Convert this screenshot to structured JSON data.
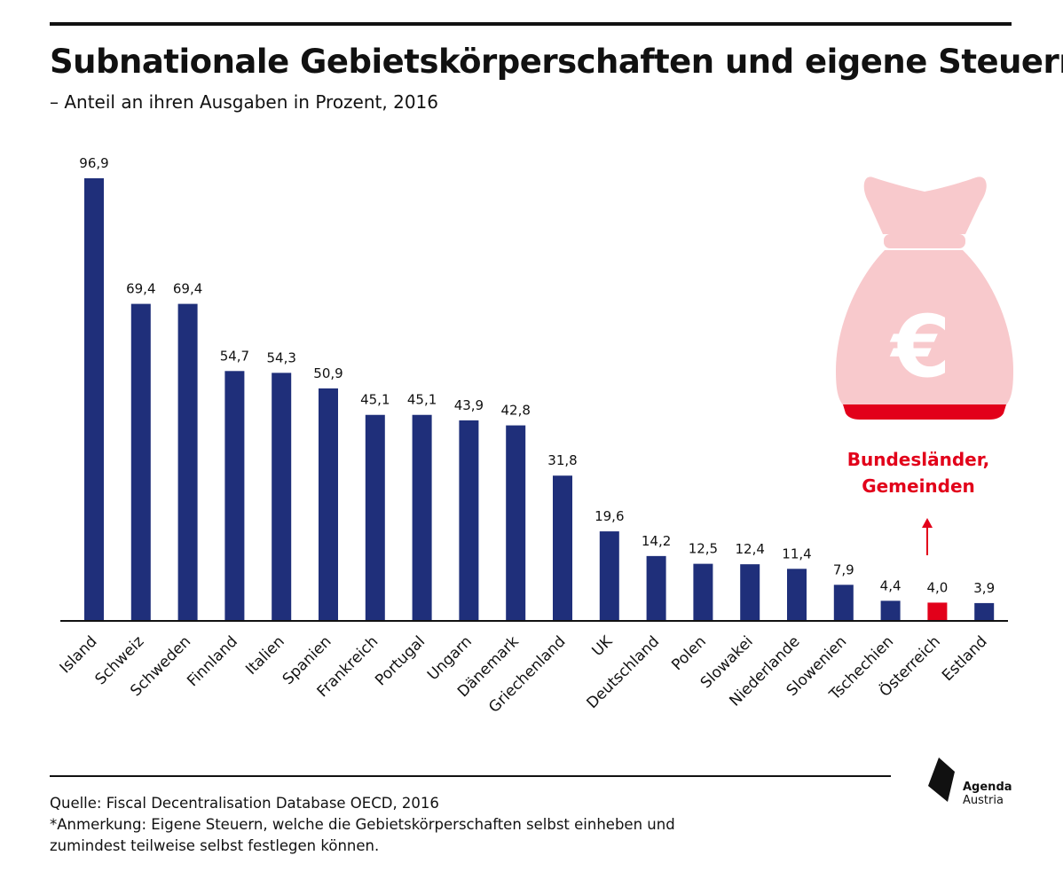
{
  "header": {
    "title": "Subnationale Gebietskörperschaften und eigene Steuern*",
    "subtitle": "– Anteil an ihren Ausgaben in Prozent, 2016"
  },
  "chart_data": {
    "type": "bar",
    "title": "Subnationale Gebietskörperschaften und eigene Steuern*",
    "subtitle": "– Anteil an ihren Ausgaben in Prozent, 2016",
    "xlabel": "",
    "ylabel": "",
    "ylim": [
      0,
      100
    ],
    "grid": false,
    "categories": [
      "Island",
      "Schweiz",
      "Schweden",
      "Finnland",
      "Italien",
      "Spanien",
      "Frankreich",
      "Portugal",
      "Ungarn",
      "Dänemark",
      "Griechenland",
      "UK",
      "Deutschland",
      "Polen",
      "Slowakei",
      "Niederlande",
      "Slowenien",
      "Tschechien",
      "Österreich",
      "Estland"
    ],
    "values": [
      96.9,
      69.4,
      69.4,
      54.7,
      54.3,
      50.9,
      45.1,
      45.1,
      43.9,
      42.8,
      31.8,
      19.6,
      14.2,
      12.5,
      12.4,
      11.4,
      7.9,
      4.4,
      4.0,
      3.9
    ],
    "value_labels": [
      "96,9",
      "69,4",
      "69,4",
      "54,7",
      "54,3",
      "50,9",
      "45,1",
      "45,1",
      "43,9",
      "42,8",
      "31,8",
      "19,6",
      "14,2",
      "12,5",
      "12,4",
      "11,4",
      "7,9",
      "4,4",
      "4,0",
      "3,9"
    ],
    "bar_color": "#1f2f7a",
    "highlight": {
      "category": "Österreich",
      "color": "#e2001a"
    },
    "annotation": {
      "lines": [
        "Bundesländer,",
        "Gemeinden"
      ],
      "target": "Österreich",
      "color": "#e2001a"
    },
    "icon": {
      "name": "money-bag-euro-icon",
      "color": "#f8c9cc",
      "band_color": "#e2001a",
      "symbol": "€"
    }
  },
  "footer": {
    "source": "Quelle: Fiscal Decentralisation Database OECD, 2016",
    "note_line1": "*Anmerkung: Eigene Steuern, welche die Gebietskörperschaften selbst einheben und",
    "note_line2": "zumindest teilweise selbst festlegen können."
  },
  "logo": {
    "line1": "Agenda",
    "line2": "Austria",
    "icon": "agenda-austria-logo-icon"
  }
}
